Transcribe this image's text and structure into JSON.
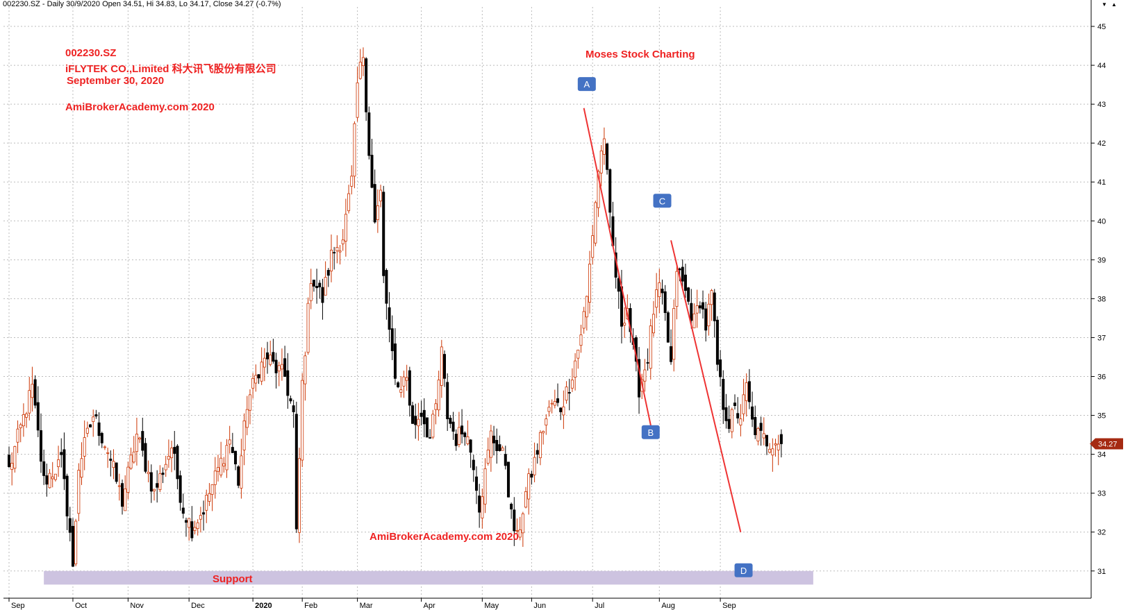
{
  "header": {
    "title": "002230.SZ - Daily 30/9/2020 Open 34.51, Hi 34.83, Lo 34.17, Close 34.27 (-0.7%)"
  },
  "annotations": {
    "ticker": "002230.SZ",
    "company": "iFLYTEK CO.,Limited  科大讯飞股份有限公司",
    "date": "September 30, 2020",
    "site_top": "AmiBrokerAcademy.com  2020",
    "brand": "Moses Stock Charting",
    "site_bottom": "AmiBrokerAcademy.com  2020",
    "support": "Support"
  },
  "window_controls": [
    "▼",
    "▲"
  ],
  "colors": {
    "up": "#cc3300",
    "down": "#000000",
    "trendline": "#ee3333",
    "support_band": "#cdc3e0",
    "label_box": "#4472c4",
    "last_price_tag": "#a52a12",
    "grid": "#bbbbbb"
  },
  "chart_data": {
    "type": "candlestick",
    "y_axis": {
      "min": 30.3,
      "max": 45.5,
      "ticks": [
        31,
        32,
        33,
        34,
        35,
        36,
        37,
        38,
        39,
        40,
        41,
        42,
        43,
        44,
        45
      ],
      "position": "right",
      "last_price": 34.27,
      "last_price_label": "34.27"
    },
    "x_axis": {
      "months": [
        {
          "label": "Sep",
          "bar": 0
        },
        {
          "label": "Oct",
          "bar": 22
        },
        {
          "label": "Nov",
          "bar": 41
        },
        {
          "label": "Dec",
          "bar": 62
        },
        {
          "label": "2020",
          "bar": 84
        },
        {
          "label": "Feb",
          "bar": 101
        },
        {
          "label": "Mar",
          "bar": 120
        },
        {
          "label": "Apr",
          "bar": 142
        },
        {
          "label": "May",
          "bar": 163
        },
        {
          "label": "Jun",
          "bar": 180
        },
        {
          "label": "Jul",
          "bar": 201
        },
        {
          "label": "Aug",
          "bar": 224
        },
        {
          "label": "Sep",
          "bar": 245
        }
      ],
      "bar_count": 267
    },
    "candles": [],
    "candle_path": [
      [
        0,
        33.6
      ],
      [
        6,
        35.2
      ],
      [
        8,
        35.7
      ],
      [
        12,
        33.3
      ],
      [
        18,
        33.8
      ],
      [
        21,
        32.0
      ],
      [
        22,
        31.0
      ],
      [
        24,
        33.7
      ],
      [
        29,
        35.0
      ],
      [
        34,
        34.1
      ],
      [
        39,
        32.8
      ],
      [
        44,
        34.5
      ],
      [
        50,
        33.0
      ],
      [
        56,
        34.2
      ],
      [
        60,
        32.6
      ],
      [
        63,
        32.1
      ],
      [
        67,
        32.6
      ],
      [
        72,
        33.6
      ],
      [
        76,
        34.4
      ],
      [
        79,
        33.3
      ],
      [
        82,
        35.3
      ],
      [
        86,
        36.2
      ],
      [
        89,
        36.5
      ],
      [
        92,
        36.2
      ],
      [
        95,
        36.0
      ],
      [
        98,
        35.0
      ],
      [
        99,
        31.9
      ],
      [
        101,
        35.8
      ],
      [
        104,
        38.6
      ],
      [
        108,
        38.0
      ],
      [
        111,
        39.1
      ],
      [
        115,
        39.6
      ],
      [
        118,
        41.0
      ],
      [
        120,
        43.5
      ],
      [
        122,
        44.3
      ],
      [
        124,
        41.8
      ],
      [
        126,
        39.9
      ],
      [
        128,
        40.7
      ],
      [
        129,
        38.6
      ],
      [
        131,
        37.0
      ],
      [
        134,
        35.7
      ],
      [
        137,
        36.0
      ],
      [
        139,
        34.7
      ],
      [
        142,
        35.1
      ],
      [
        145,
        34.4
      ],
      [
        147,
        35.2
      ],
      [
        149,
        36.6
      ],
      [
        151,
        35.0
      ],
      [
        154,
        34.4
      ],
      [
        157,
        34.7
      ],
      [
        160,
        33.8
      ],
      [
        162,
        32.7
      ],
      [
        164,
        33.5
      ],
      [
        166,
        34.5
      ],
      [
        169,
        34.1
      ],
      [
        171,
        33.8
      ],
      [
        173,
        32.4
      ],
      [
        175,
        31.8
      ],
      [
        178,
        33.0
      ],
      [
        181,
        33.8
      ],
      [
        184,
        34.7
      ],
      [
        187,
        35.3
      ],
      [
        190,
        35.2
      ],
      [
        193,
        35.8
      ],
      [
        196,
        36.7
      ],
      [
        199,
        38.0
      ],
      [
        201,
        39.7
      ],
      [
        203,
        41.3
      ],
      [
        205,
        42.2
      ],
      [
        207,
        40.0
      ],
      [
        209,
        38.6
      ],
      [
        211,
        37.4
      ],
      [
        213,
        37.8
      ],
      [
        215,
        36.6
      ],
      [
        217,
        35.7
      ],
      [
        220,
        36.5
      ],
      [
        222,
        37.7
      ],
      [
        224,
        38.3
      ],
      [
        226,
        37.5
      ],
      [
        228,
        36.3
      ],
      [
        230,
        38.8
      ],
      [
        232,
        38.4
      ],
      [
        234,
        37.9
      ],
      [
        236,
        37.4
      ],
      [
        238,
        38.0
      ],
      [
        240,
        37.3
      ],
      [
        242,
        38.1
      ],
      [
        244,
        36.3
      ],
      [
        246,
        35.3
      ],
      [
        248,
        34.8
      ],
      [
        250,
        35.1
      ],
      [
        252,
        35.0
      ],
      [
        254,
        35.7
      ],
      [
        256,
        34.8
      ],
      [
        258,
        34.5
      ],
      [
        260,
        34.4
      ],
      [
        262,
        34.3
      ],
      [
        264,
        34.4
      ],
      [
        266,
        34.27
      ]
    ],
    "trendlines": [
      {
        "from": {
          "bar": 198,
          "price": 42.9
        },
        "to": {
          "bar": 222,
          "price": 34.4
        }
      },
      {
        "from": {
          "bar": 228,
          "price": 39.5
        },
        "to": {
          "bar": 252,
          "price": 32.0
        }
      }
    ],
    "support_zone": {
      "from_bar": 12,
      "to_bar": 277,
      "price_low": 30.65,
      "price_high": 31.0
    },
    "labels": [
      {
        "text": "A",
        "bar": 199,
        "price": 43.5
      },
      {
        "text": "B",
        "bar": 221,
        "price": 34.55
      },
      {
        "text": "C",
        "bar": 225,
        "price": 40.5
      },
      {
        "text": "D",
        "bar": 253,
        "price": 31.0
      }
    ]
  }
}
